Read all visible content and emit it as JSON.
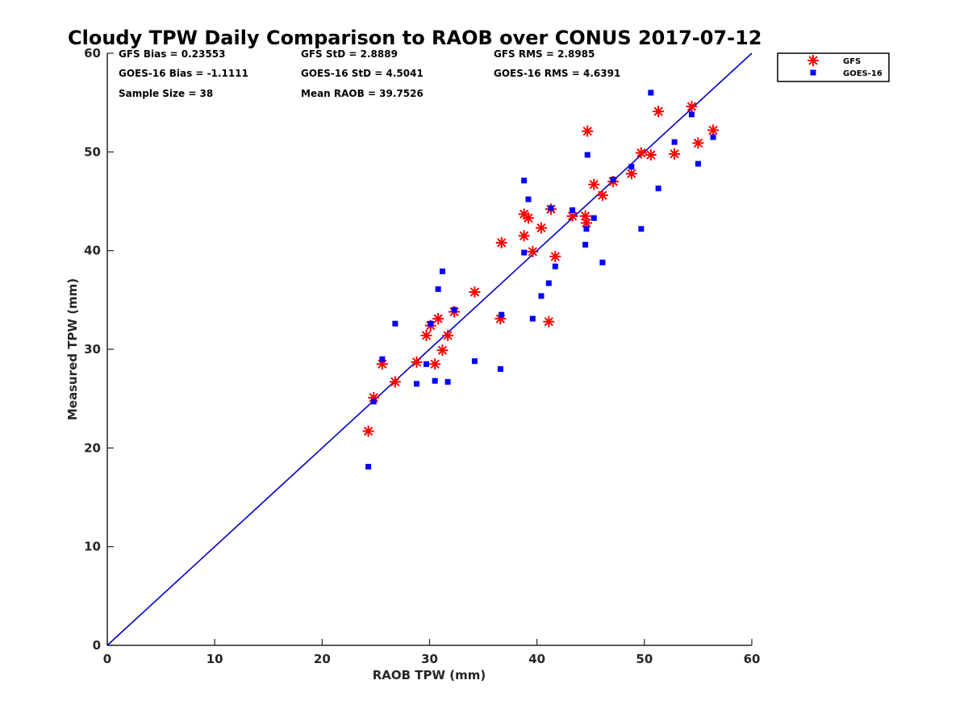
{
  "chart_data": {
    "type": "scatter",
    "title": "Cloudy TPW Daily Comparison to RAOB over CONUS 2017-07-12",
    "xlabel": "RAOB TPW (mm)",
    "ylabel": "Measured TPW (mm)",
    "xlim": [
      0,
      60
    ],
    "ylim": [
      0,
      60
    ],
    "xticks": [
      0,
      10,
      20,
      30,
      40,
      50,
      60
    ],
    "yticks": [
      0,
      10,
      20,
      30,
      40,
      50,
      60
    ],
    "grid": false,
    "legend_position": "outside top-right",
    "stats": {
      "gfs_bias": "GFS Bias = 0.23553",
      "gfs_std": "GFS StD = 2.8889",
      "gfs_rms": "GFS RMS = 2.8985",
      "goes_bias": "GOES-16 Bias = -1.1111",
      "goes_std": "GOES-16 StD = 4.5041",
      "goes_rms": "GOES-16 RMS = 4.6391",
      "sample_size": "Sample Size = 38",
      "mean_raob": "Mean RAOB = 39.7526"
    },
    "reference_line": {
      "x": [
        0,
        60
      ],
      "y": [
        0,
        60
      ],
      "color": "#0000cc"
    },
    "series": [
      {
        "name": "GFS",
        "marker": "asterisk",
        "color": "#ff0000",
        "points": [
          [
            24.3,
            21.7
          ],
          [
            24.8,
            25.1
          ],
          [
            25.6,
            28.5
          ],
          [
            26.8,
            26.7
          ],
          [
            28.8,
            28.7
          ],
          [
            29.7,
            31.4
          ],
          [
            30.1,
            32.4
          ],
          [
            30.5,
            28.5
          ],
          [
            30.8,
            33.1
          ],
          [
            31.2,
            29.9
          ],
          [
            31.7,
            31.4
          ],
          [
            32.3,
            33.8
          ],
          [
            34.2,
            35.8
          ],
          [
            36.6,
            33.1
          ],
          [
            36.7,
            40.8
          ],
          [
            38.8,
            41.5
          ],
          [
            38.8,
            43.7
          ],
          [
            39.2,
            43.3
          ],
          [
            39.6,
            39.9
          ],
          [
            40.4,
            42.3
          ],
          [
            41.1,
            32.8
          ],
          [
            41.3,
            44.2
          ],
          [
            41.7,
            39.4
          ],
          [
            43.3,
            43.5
          ],
          [
            44.5,
            43.5
          ],
          [
            44.6,
            42.8
          ],
          [
            44.7,
            52.1
          ],
          [
            45.3,
            46.7
          ],
          [
            46.1,
            45.6
          ],
          [
            47.1,
            47.0
          ],
          [
            48.8,
            47.8
          ],
          [
            49.7,
            49.9
          ],
          [
            50.6,
            49.7
          ],
          [
            51.3,
            54.1
          ],
          [
            52.8,
            49.8
          ],
          [
            54.4,
            54.6
          ],
          [
            55.0,
            50.9
          ],
          [
            56.4,
            52.2
          ]
        ]
      },
      {
        "name": "GOES-16",
        "marker": "square",
        "color": "#0000ff",
        "points": [
          [
            24.3,
            18.1
          ],
          [
            24.8,
            24.7
          ],
          [
            25.6,
            29.0
          ],
          [
            26.8,
            32.6
          ],
          [
            28.8,
            26.5
          ],
          [
            29.7,
            28.5
          ],
          [
            30.1,
            32.6
          ],
          [
            30.5,
            26.8
          ],
          [
            30.8,
            36.1
          ],
          [
            31.2,
            37.9
          ],
          [
            31.7,
            26.7
          ],
          [
            32.3,
            34.0
          ],
          [
            34.2,
            28.8
          ],
          [
            36.6,
            28.0
          ],
          [
            36.7,
            33.5
          ],
          [
            38.8,
            39.8
          ],
          [
            38.8,
            47.1
          ],
          [
            39.2,
            45.2
          ],
          [
            39.6,
            33.1
          ],
          [
            40.4,
            35.4
          ],
          [
            41.1,
            36.7
          ],
          [
            41.3,
            44.3
          ],
          [
            41.7,
            38.4
          ],
          [
            43.3,
            44.1
          ],
          [
            44.5,
            40.6
          ],
          [
            44.6,
            42.2
          ],
          [
            44.7,
            49.7
          ],
          [
            45.3,
            43.3
          ],
          [
            46.1,
            38.8
          ],
          [
            47.1,
            47.2
          ],
          [
            48.8,
            48.5
          ],
          [
            49.7,
            42.2
          ],
          [
            50.6,
            56.0
          ],
          [
            51.3,
            46.3
          ],
          [
            52.8,
            51.0
          ],
          [
            54.4,
            53.8
          ],
          [
            55.0,
            48.8
          ],
          [
            56.4,
            51.5
          ]
        ]
      }
    ]
  }
}
